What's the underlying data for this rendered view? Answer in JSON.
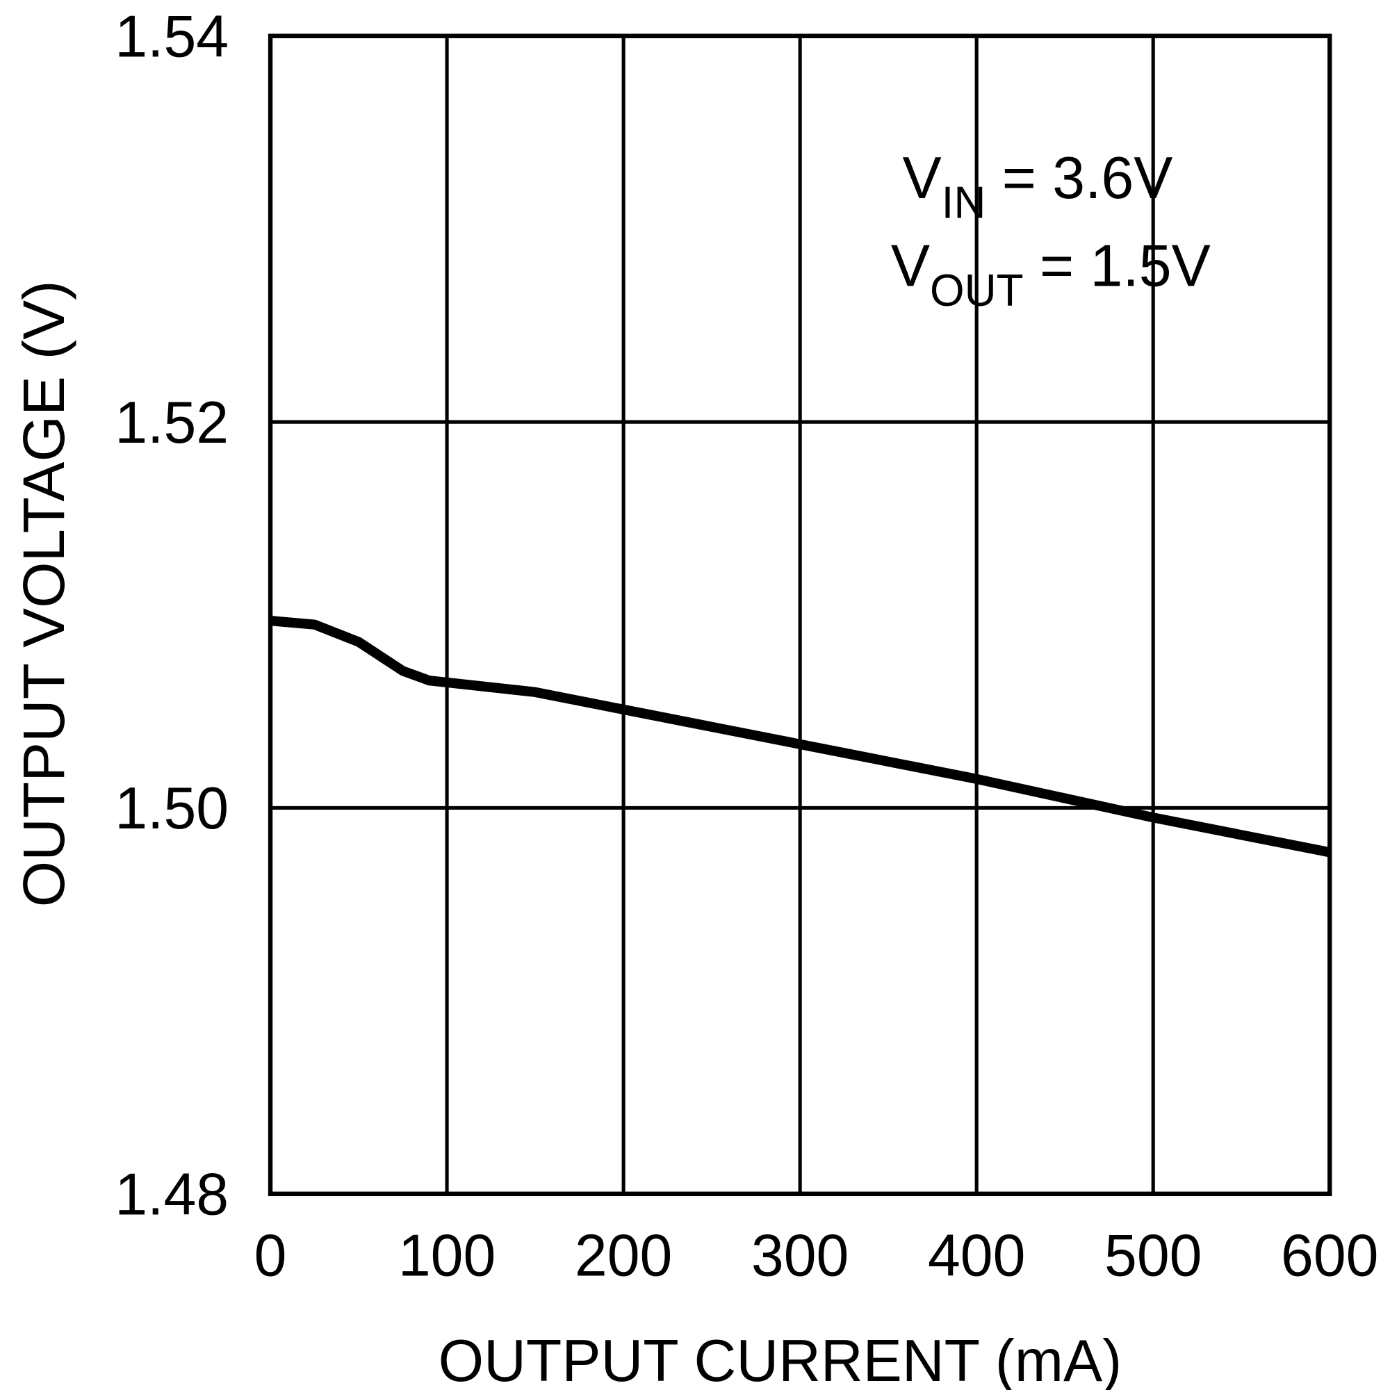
{
  "chart_data": {
    "type": "line",
    "x_label": "OUTPUT CURRENT (mA)",
    "y_label": "OUTPUT VOLTAGE (V)",
    "annotations": [
      {
        "main": "V",
        "sub": "IN",
        "rest": " = 3.6V"
      },
      {
        "main": "V",
        "sub": "OUT",
        "rest": " = 1.5V"
      }
    ],
    "x": [
      0,
      25,
      50,
      75,
      90,
      100,
      150,
      200,
      300,
      400,
      500,
      600
    ],
    "values": [
      1.5097,
      1.5095,
      1.5086,
      1.5071,
      1.5066,
      1.5065,
      1.506,
      1.5051,
      1.5033,
      1.5015,
      1.4995,
      1.4977
    ],
    "color": "#000000",
    "xlim": [
      0,
      600
    ],
    "ylim": [
      1.48,
      1.54
    ],
    "xticks": [
      0,
      100,
      200,
      300,
      400,
      500,
      600
    ],
    "yticks": [
      1.48,
      {
        "value": 1.5,
        "label": "1.50"
      },
      1.52,
      1.54
    ],
    "grid": true
  }
}
